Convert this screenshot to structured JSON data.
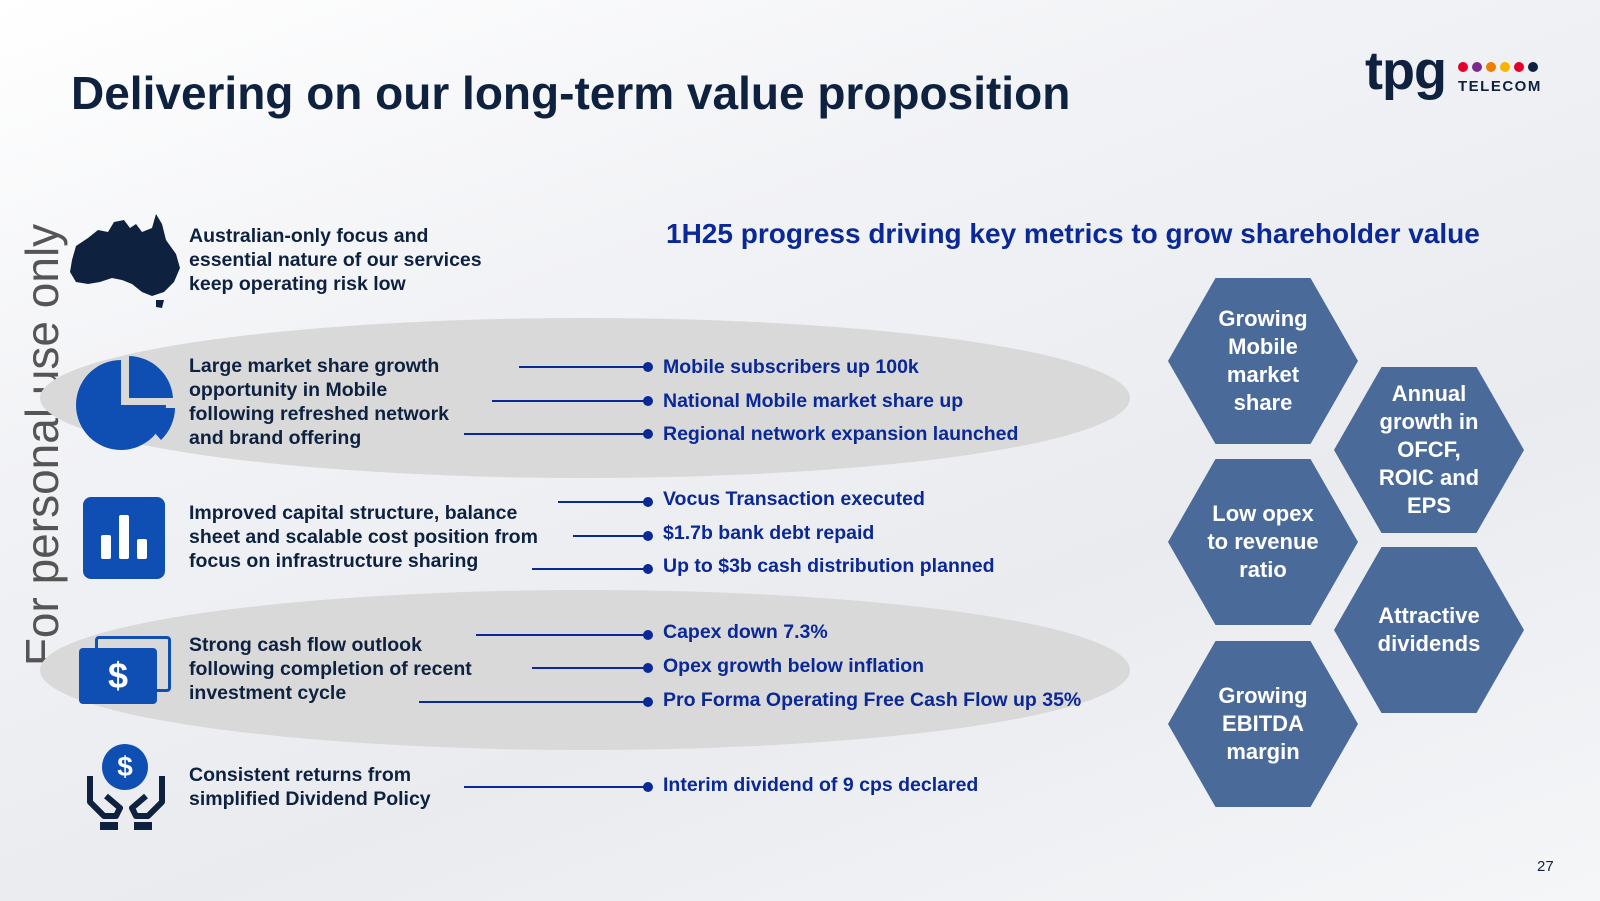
{
  "title": "Delivering on our long-term value proposition",
  "logo": {
    "wordmark": "tpg",
    "subtext": "TELECOM",
    "dot_colors": [
      "#e4002b",
      "#7b2a8c",
      "#ee7d00",
      "#f7b500",
      "#e4002b",
      "#0e2240"
    ]
  },
  "watermark": "For personal use only",
  "subtitle": "1H25 progress driving key metrics to grow shareholder value",
  "pillars": [
    {
      "icon": "australia-map-icon",
      "text": "Australian-only focus and essential nature of our services keep operating risk low",
      "metrics": []
    },
    {
      "icon": "pie-chart-icon",
      "text": "Large market share growth opportunity in Mobile following refreshed network and brand offering",
      "metrics": [
        "Mobile subscribers up 100k",
        "National Mobile market share up",
        "Regional network expansion launched"
      ]
    },
    {
      "icon": "bar-chart-icon",
      "text": "Improved capital structure, balance sheet and scalable cost position from focus on infrastructure sharing",
      "metrics": [
        "Vocus Transaction executed",
        "$1.7b bank debt repaid",
        "Up to $3b cash distribution planned"
      ]
    },
    {
      "icon": "banknote-icon",
      "icon_glyph": "$",
      "text": "Strong cash flow outlook following completion of recent investment cycle",
      "metrics": [
        "Capex down 7.3%",
        "Opex growth below inflation",
        "Pro Forma Operating Free Cash Flow up 35%"
      ]
    },
    {
      "icon": "hands-dollar-icon",
      "icon_glyph": "$",
      "text": "Consistent returns from simplified Dividend Policy",
      "metrics": [
        "Interim dividend of 9 cps declared"
      ]
    }
  ],
  "hexagons": [
    "Growing\nMobile\nmarket\nshare",
    "Annual\ngrowth in\nOFCF,\nROIC and\nEPS",
    "Low opex\nto revenue\nratio",
    "Attractive\ndividends",
    "Growing\nEBITDA\nmargin"
  ],
  "page_number": "27",
  "colors": {
    "navy": "#0e2240",
    "blue": "#0a2896",
    "icon_blue": "#0f4fb3",
    "hex_fill": "#4a6a9a",
    "pill_gray": "#d9d9d9"
  }
}
